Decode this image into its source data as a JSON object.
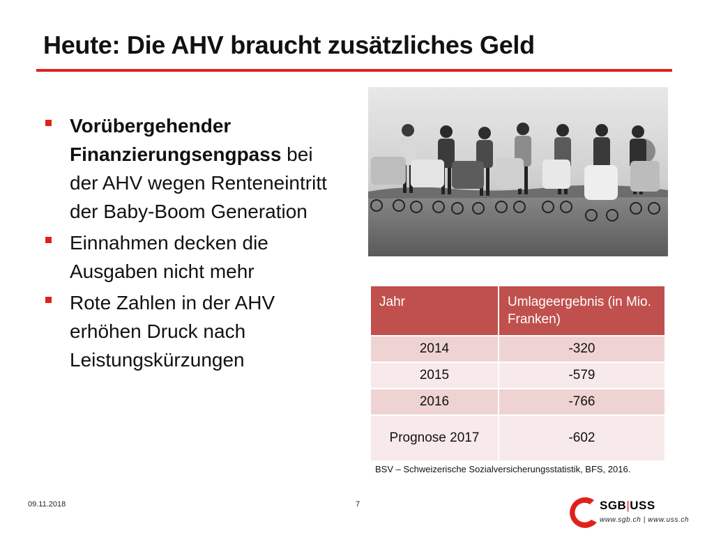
{
  "slide": {
    "title": "Heute: Die AHV braucht zusätzliches Geld",
    "accent_color": "#e0211b"
  },
  "bullets": [
    {
      "bold": "Vorübergehender Finanzierungsengpass",
      "text": " bei der AHV wegen Renteneintritt der Baby-Boom Generation"
    },
    {
      "bold": "",
      "text": "Einnahmen decken die Ausgaben nicht mehr"
    },
    {
      "bold": "",
      "text": "Rote Zahlen in der AHV erhöhen Druck nach Leistungskürzungen"
    }
  ],
  "photo": {
    "icon": "historic-photo-women-with-prams"
  },
  "table": {
    "header_color": "#c0504d",
    "headers": [
      "Jahr",
      "Umlageergebnis (in Mio. Franken)"
    ],
    "rows": [
      {
        "year": "2014",
        "value": "-320"
      },
      {
        "year": "2015",
        "value": "-579"
      },
      {
        "year": "2016",
        "value": "-766"
      },
      {
        "year": "Prognose 2017",
        "value": "-602"
      }
    ],
    "source": "BSV – Schweizerische Sozialversicherungsstatistik, BFS, 2016."
  },
  "footer": {
    "date": "09.11.2018",
    "page": "7"
  },
  "logo": {
    "left": "SGB",
    "sep": "|",
    "right": "USS",
    "url": "www.sgb.ch | www.uss.ch"
  }
}
